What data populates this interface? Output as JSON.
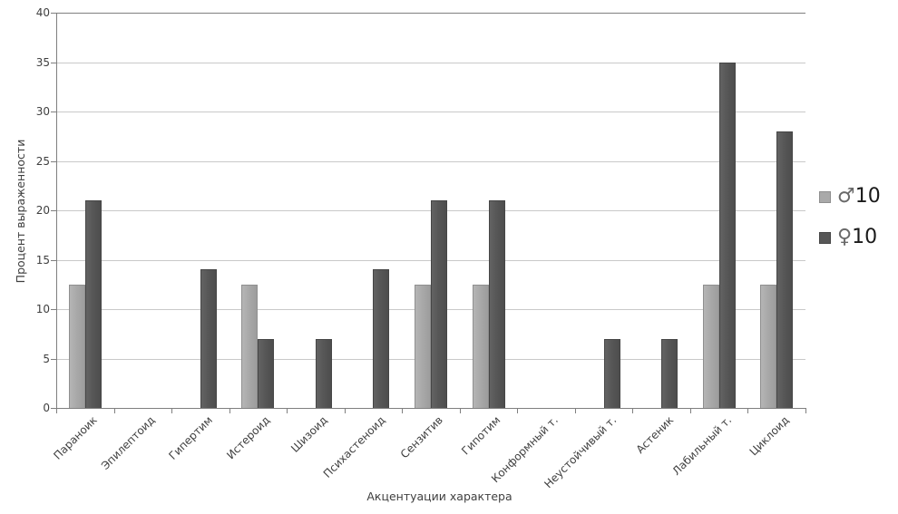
{
  "chart_data": {
    "type": "bar",
    "title": "",
    "xlabel": "Акцентуации характера",
    "ylabel": "Процент выраженности",
    "categories": [
      "Параноик",
      "Эпилептоид",
      "Гипертим",
      "Истероид",
      "Шизоид",
      "Психастеноид",
      "Сензитив",
      "Гипотим",
      "Конформный т.",
      "Неустойчивый т.",
      "Астеник",
      "Лабильный т.",
      "Циклоид"
    ],
    "series": [
      {
        "name": "♂10",
        "color": "#a9a9a9",
        "values": [
          12.5,
          0,
          0,
          12.5,
          0,
          0,
          12.5,
          12.5,
          0,
          0,
          0,
          12.5,
          12.5
        ]
      },
      {
        "name": "♀10",
        "color": "#575757",
        "values": [
          21,
          0,
          14,
          7,
          7,
          14,
          21,
          21,
          0,
          7,
          7,
          35,
          28
        ]
      }
    ],
    "ylim": [
      0,
      40
    ],
    "ytick_step": 5,
    "yticks": [
      0,
      5,
      10,
      15,
      20,
      25,
      30,
      35,
      40
    ],
    "grid": "horizontal-on",
    "legend_position": "right",
    "bar_orientation": "vertical",
    "background": "#ffffff"
  },
  "legend": {
    "items": [
      {
        "symbol": "♂",
        "count": "10",
        "series_color": "#a9a9a9"
      },
      {
        "symbol": "♀",
        "count": "10",
        "series_color": "#575757"
      }
    ]
  }
}
